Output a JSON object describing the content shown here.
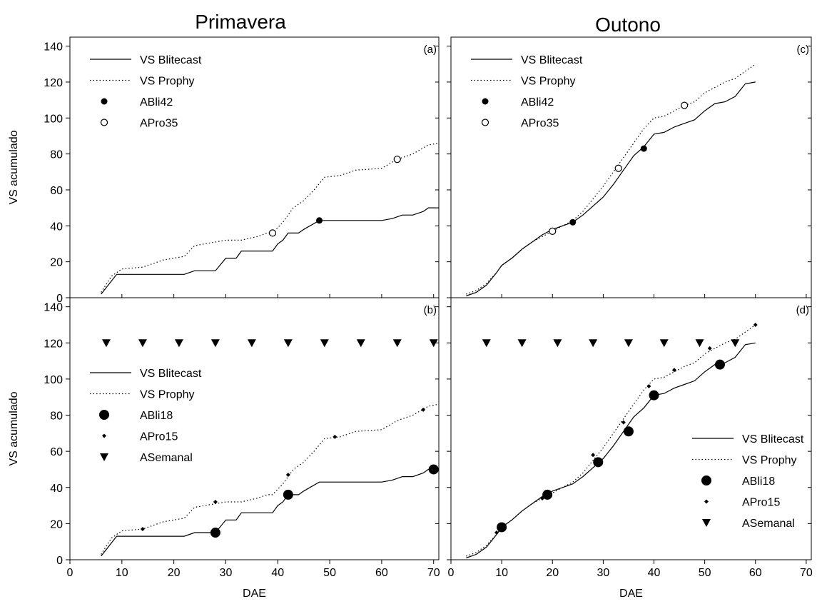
{
  "columns": [
    {
      "title": "Primavera"
    },
    {
      "title": "Outono"
    }
  ],
  "chart_data": [
    {
      "id": "a",
      "type": "line",
      "panel_label": "(a)",
      "ylabel": "VS acumulado",
      "xlabel": "",
      "xlim": [
        0,
        71
      ],
      "ylim": [
        0,
        145
      ],
      "xticks": [
        0,
        10,
        20,
        30,
        40,
        50,
        60,
        70
      ],
      "yticks": [
        0,
        20,
        40,
        60,
        80,
        100,
        120,
        140
      ],
      "legend_position": "top-left",
      "series": [
        {
          "name": "VS Blitecast",
          "kind": "line",
          "style": "solid",
          "x": [
            6,
            9,
            22,
            24,
            28,
            30,
            32,
            33,
            35,
            39,
            40,
            41,
            42,
            44,
            45,
            48,
            60,
            62,
            64,
            66,
            68,
            69,
            71
          ],
          "y": [
            2,
            13,
            13,
            15,
            15,
            22,
            22,
            26,
            26,
            26,
            30,
            32,
            36,
            36,
            38,
            43,
            43,
            44,
            46,
            46,
            48,
            50,
            50
          ]
        },
        {
          "name": "VS Prophy",
          "kind": "line",
          "style": "dotted",
          "x": [
            6,
            8,
            10,
            14,
            18,
            22,
            24,
            28,
            30,
            33,
            36,
            38,
            39,
            41,
            43,
            45,
            47,
            49,
            52,
            55,
            60,
            63,
            66,
            69,
            71
          ],
          "y": [
            3,
            12,
            16,
            17,
            21,
            23,
            29,
            31,
            32,
            32,
            34,
            36,
            36,
            42,
            50,
            54,
            60,
            67,
            68,
            71,
            72,
            77,
            80,
            85,
            86
          ]
        },
        {
          "name": "ABli42",
          "kind": "marker",
          "marker": "filled-circle",
          "x": [
            48
          ],
          "y": [
            43
          ]
        },
        {
          "name": "APro35",
          "kind": "marker",
          "marker": "open-circle",
          "x": [
            39,
            63
          ],
          "y": [
            36,
            77
          ]
        }
      ]
    },
    {
      "id": "b",
      "type": "line",
      "panel_label": "(b)",
      "ylabel": "VS acumulado",
      "xlabel": "DAE",
      "xlim": [
        0,
        71
      ],
      "ylim": [
        0,
        145
      ],
      "xticks": [
        0,
        10,
        20,
        30,
        40,
        50,
        60,
        70
      ],
      "yticks": [
        0,
        20,
        40,
        60,
        80,
        100,
        120,
        140
      ],
      "legend_position": "middle-left",
      "series": [
        {
          "name": "VS Blitecast",
          "kind": "line",
          "style": "solid",
          "x": [
            6,
            9,
            22,
            24,
            28,
            30,
            32,
            33,
            35,
            39,
            40,
            41,
            42,
            44,
            45,
            48,
            60,
            62,
            64,
            66,
            68,
            69,
            71
          ],
          "y": [
            2,
            13,
            13,
            15,
            15,
            22,
            22,
            26,
            26,
            26,
            30,
            32,
            36,
            36,
            38,
            43,
            43,
            44,
            46,
            46,
            48,
            50,
            50
          ]
        },
        {
          "name": "VS Prophy",
          "kind": "line",
          "style": "dotted",
          "x": [
            6,
            8,
            10,
            14,
            18,
            22,
            24,
            28,
            30,
            33,
            36,
            38,
            39,
            41,
            43,
            45,
            47,
            49,
            52,
            55,
            60,
            63,
            66,
            69,
            71
          ],
          "y": [
            3,
            12,
            16,
            17,
            21,
            23,
            29,
            31,
            32,
            32,
            34,
            36,
            36,
            42,
            50,
            54,
            60,
            67,
            68,
            71,
            72,
            77,
            80,
            85,
            86
          ]
        },
        {
          "name": "ABli18",
          "kind": "marker",
          "marker": "big-filled-circle",
          "x": [
            28,
            42,
            70
          ],
          "y": [
            15,
            36,
            50
          ]
        },
        {
          "name": "APro15",
          "kind": "marker",
          "marker": "small-diamond",
          "x": [
            14,
            28,
            42,
            51,
            68
          ],
          "y": [
            17,
            32,
            47,
            68,
            83
          ]
        },
        {
          "name": "ASemanal",
          "kind": "marker",
          "marker": "down-triangle",
          "x": [
            7,
            14,
            21,
            28,
            35,
            42,
            49,
            56,
            63,
            70
          ],
          "y": [
            120,
            120,
            120,
            120,
            120,
            120,
            120,
            120,
            120,
            120
          ]
        }
      ]
    },
    {
      "id": "c",
      "type": "line",
      "panel_label": "(c)",
      "ylabel": "",
      "xlabel": "",
      "xlim": [
        0,
        71
      ],
      "ylim": [
        0,
        145
      ],
      "xticks": [
        0,
        10,
        20,
        30,
        40,
        50,
        60,
        70
      ],
      "yticks": [
        0,
        20,
        40,
        60,
        80,
        100,
        120,
        140
      ],
      "legend_position": "top-left",
      "series": [
        {
          "name": "VS Blitecast",
          "kind": "line",
          "style": "solid",
          "x": [
            3,
            5,
            7,
            9,
            10,
            12,
            14,
            16,
            18,
            20,
            22,
            24,
            26,
            28,
            30,
            32,
            34,
            36,
            38,
            40,
            42,
            44,
            46,
            48,
            50,
            52,
            54,
            56,
            58,
            60
          ],
          "y": [
            1,
            3,
            7,
            14,
            18,
            22,
            27,
            31,
            35,
            38,
            40,
            42,
            46,
            51,
            56,
            63,
            71,
            79,
            84,
            91,
            92,
            95,
            97,
            99,
            104,
            108,
            109,
            112,
            119,
            120
          ]
        },
        {
          "name": "VS Prophy",
          "kind": "line",
          "style": "dotted",
          "x": [
            3,
            5,
            7,
            9,
            10,
            12,
            14,
            16,
            18,
            20,
            22,
            24,
            26,
            28,
            30,
            32,
            34,
            36,
            38,
            40,
            42,
            44,
            46,
            48,
            50,
            52,
            54,
            56,
            58,
            60
          ],
          "y": [
            2,
            4,
            8,
            14,
            18,
            22,
            27,
            31,
            34,
            37,
            40,
            43,
            48,
            55,
            62,
            70,
            78,
            86,
            94,
            100,
            101,
            104,
            107,
            109,
            114,
            117,
            120,
            122,
            126,
            130
          ]
        },
        {
          "name": "ABli42",
          "kind": "marker",
          "marker": "filled-circle",
          "x": [
            24,
            38
          ],
          "y": [
            42,
            83
          ]
        },
        {
          "name": "APro35",
          "kind": "marker",
          "marker": "open-circle",
          "x": [
            20,
            33,
            46
          ],
          "y": [
            37,
            72,
            107
          ]
        }
      ]
    },
    {
      "id": "d",
      "type": "line",
      "panel_label": "(d)",
      "ylabel": "",
      "xlabel": "DAE",
      "xlim": [
        0,
        71
      ],
      "ylim": [
        0,
        145
      ],
      "xticks": [
        0,
        10,
        20,
        30,
        40,
        50,
        60,
        70
      ],
      "yticks": [
        0,
        20,
        40,
        60,
        80,
        100,
        120,
        140
      ],
      "legend_position": "bottom-right",
      "series": [
        {
          "name": "VS Blitecast",
          "kind": "line",
          "style": "solid",
          "x": [
            3,
            5,
            7,
            9,
            10,
            12,
            14,
            16,
            18,
            20,
            22,
            24,
            26,
            28,
            30,
            32,
            34,
            36,
            38,
            40,
            42,
            44,
            46,
            48,
            50,
            52,
            54,
            56,
            58,
            60
          ],
          "y": [
            1,
            3,
            7,
            14,
            18,
            22,
            27,
            31,
            35,
            38,
            40,
            42,
            46,
            51,
            56,
            63,
            71,
            79,
            84,
            91,
            92,
            95,
            97,
            99,
            104,
            108,
            109,
            112,
            119,
            120
          ]
        },
        {
          "name": "VS Prophy",
          "kind": "line",
          "style": "dotted",
          "x": [
            3,
            5,
            7,
            9,
            10,
            12,
            14,
            16,
            18,
            20,
            22,
            24,
            26,
            28,
            30,
            32,
            34,
            36,
            38,
            40,
            42,
            44,
            46,
            48,
            50,
            52,
            54,
            56,
            58,
            60
          ],
          "y": [
            2,
            4,
            8,
            14,
            18,
            22,
            27,
            31,
            34,
            37,
            40,
            43,
            48,
            55,
            62,
            70,
            78,
            86,
            94,
            100,
            101,
            104,
            107,
            109,
            114,
            117,
            120,
            122,
            126,
            130
          ]
        },
        {
          "name": "ABli18",
          "kind": "marker",
          "marker": "big-filled-circle",
          "x": [
            10,
            19,
            29,
            35,
            40,
            53
          ],
          "y": [
            18,
            36,
            54,
            71,
            91,
            108
          ]
        },
        {
          "name": "APro15",
          "kind": "marker",
          "marker": "small-diamond",
          "x": [
            9,
            18,
            28,
            34,
            39,
            44,
            51,
            60
          ],
          "y": [
            15,
            34,
            58,
            76,
            96,
            105,
            117,
            130
          ]
        },
        {
          "name": "ASemanal",
          "kind": "marker",
          "marker": "down-triangle",
          "x": [
            7,
            14,
            21,
            28,
            35,
            42,
            49,
            56
          ],
          "y": [
            120,
            120,
            120,
            120,
            120,
            120,
            120,
            120
          ]
        }
      ]
    }
  ]
}
